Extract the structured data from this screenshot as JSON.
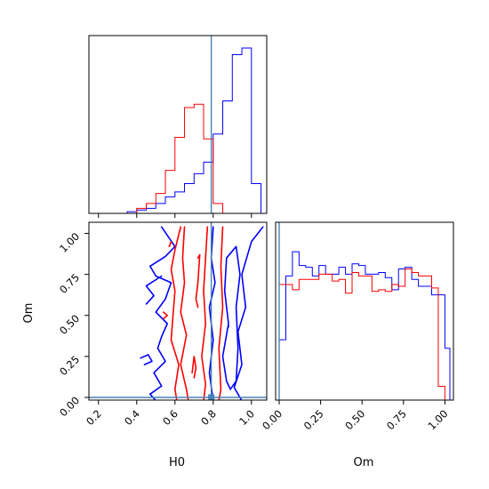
{
  "chart_data": {
    "type": "corner",
    "parameters": [
      "H0",
      "Om"
    ],
    "xlabel_h0": "H0",
    "xlabel_om": "Om",
    "ylabel_om": "Om",
    "h0_range": [
      0.15,
      1.08
    ],
    "om_range": [
      0.0,
      1.03
    ],
    "h0_ticks": [
      "0.2",
      "0.4",
      "0.6",
      "0.8",
      "1.0"
    ],
    "om_ticks": [
      "0.00",
      "0.25",
      "0.50",
      "0.75",
      "1.00"
    ],
    "truth": {
      "H0": 0.79,
      "Om": 0.0
    },
    "colors": {
      "blue": "#0000ff",
      "red": "#ff0000",
      "truth": "#4682b4"
    },
    "series": [
      {
        "color": "blue",
        "hist_H0": {
          "edges": [
            0.15,
            0.2,
            0.25,
            0.3,
            0.35,
            0.4,
            0.45,
            0.5,
            0.55,
            0.6,
            0.65,
            0.7,
            0.75,
            0.8,
            0.85,
            0.9,
            0.95,
            1.0,
            1.05
          ],
          "counts": [
            0,
            0,
            0,
            0,
            0.01,
            0.02,
            0.03,
            0.06,
            0.1,
            0.13,
            0.18,
            0.24,
            0.31,
            0.48,
            0.68,
            0.96,
            1.0,
            0.18
          ]
        },
        "hist_Om": {
          "edges": [
            0,
            0.04,
            0.08,
            0.12,
            0.16,
            0.2,
            0.24,
            0.28,
            0.32,
            0.36,
            0.4,
            0.44,
            0.48,
            0.52,
            0.56,
            0.6,
            0.64,
            0.68,
            0.72,
            0.76,
            0.8,
            0.84,
            0.88,
            0.92,
            0.96,
            1.0,
            1.03
          ],
          "counts": [
            0.35,
            0.72,
            0.86,
            0.78,
            0.77,
            0.72,
            0.78,
            0.73,
            0.73,
            0.77,
            0.73,
            0.79,
            0.78,
            0.73,
            0.73,
            0.74,
            0.71,
            0.64,
            0.76,
            0.77,
            0.7,
            0.66,
            0.66,
            0.61,
            0.61,
            0.3
          ]
        }
      },
      {
        "color": "red",
        "hist_H0": {
          "edges": [
            0.15,
            0.4,
            0.45,
            0.5,
            0.55,
            0.6,
            0.65,
            0.7,
            0.75,
            0.8,
            0.85
          ],
          "counts": [
            0,
            0.03,
            0.06,
            0.12,
            0.26,
            0.46,
            0.64,
            0.66,
            0.45,
            0.06
          ]
        },
        "hist_Om": {
          "edges": [
            0,
            0.04,
            0.08,
            0.12,
            0.16,
            0.2,
            0.24,
            0.28,
            0.32,
            0.36,
            0.4,
            0.44,
            0.48,
            0.52,
            0.56,
            0.6,
            0.64,
            0.68,
            0.72,
            0.76,
            0.8,
            0.84,
            0.88,
            0.92,
            0.96,
            1.0
          ],
          "counts": [
            0.67,
            0.67,
            0.64,
            0.7,
            0.7,
            0.7,
            0.73,
            0.73,
            0.69,
            0.7,
            0.62,
            0.74,
            0.72,
            0.72,
            0.63,
            0.64,
            0.63,
            0.67,
            0.66,
            0.76,
            0.74,
            0.72,
            0.72,
            0.65,
            0.08
          ]
        }
      }
    ]
  }
}
